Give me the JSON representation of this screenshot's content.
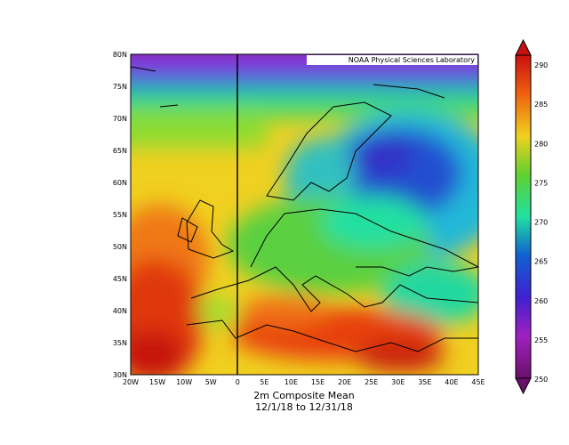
{
  "map": {
    "credit": "NOAA Physical Sciences Laboratory",
    "lon_labels": [
      "20W",
      "15W",
      "10W",
      "5W",
      "0",
      "5E",
      "10E",
      "15E",
      "20E",
      "25E",
      "30E",
      "35E",
      "40E",
      "45E"
    ],
    "lat_labels": [
      "80N",
      "75N",
      "70N",
      "65N",
      "60N",
      "55N",
      "50N",
      "45N",
      "40N",
      "35N",
      "30N"
    ],
    "caption": {
      "variable": "2m   Composite Mean",
      "dates": "12/1/18  to 12/31/18"
    },
    "colorbar": {
      "labels": [
        "290",
        "285",
        "280",
        "275",
        "270",
        "265",
        "260",
        "255",
        "250"
      ]
    }
  }
}
